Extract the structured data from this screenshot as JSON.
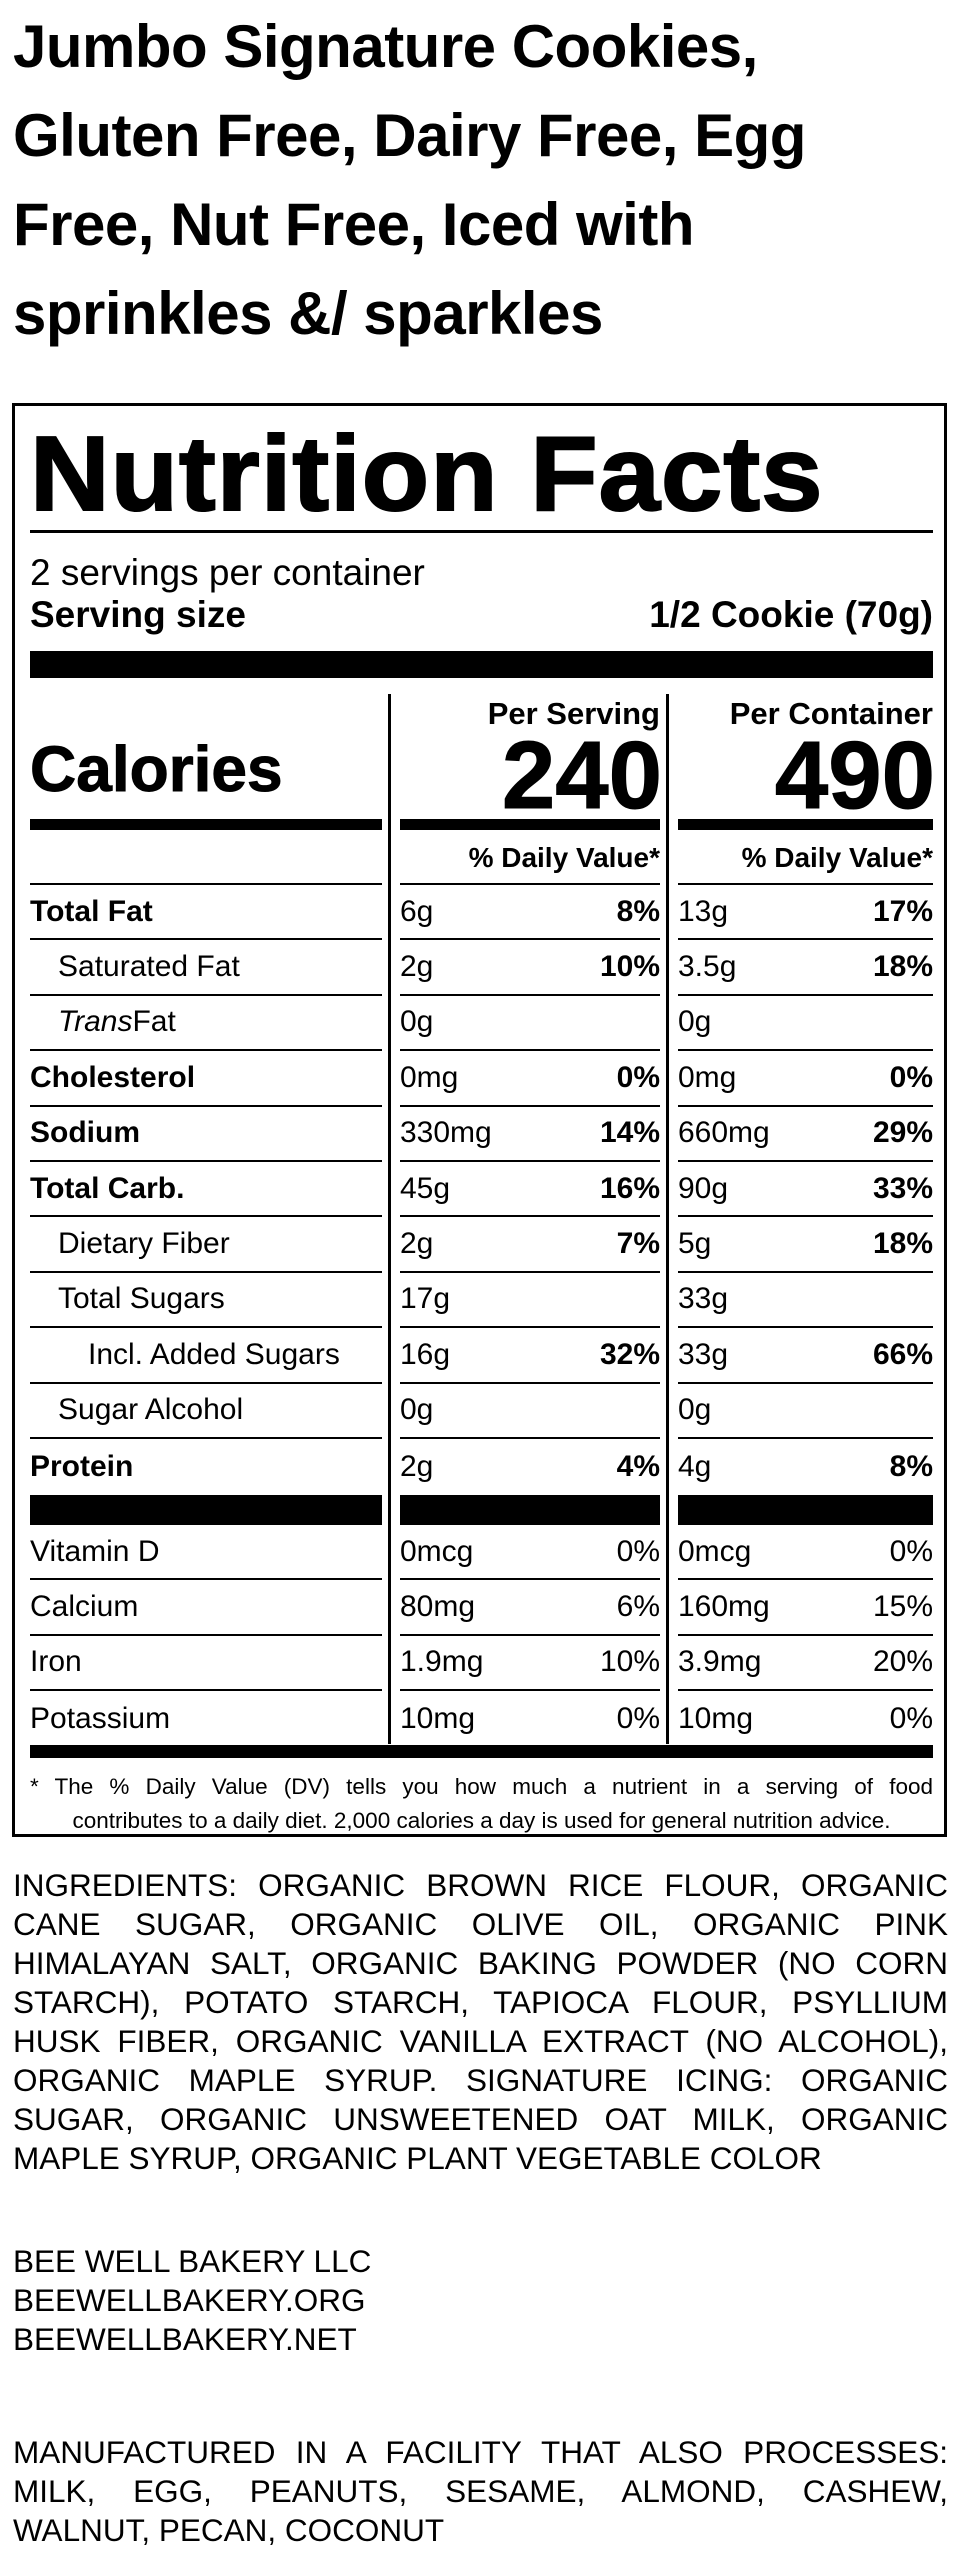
{
  "product_title": "Jumbo Signature Cookies, Gluten Free, Dairy Free, Egg Free, Nut Free, Iced with sprinkles &/ sparkles",
  "label": {
    "heading": "Nutrition Facts",
    "servings_per_container": "2 servings per container",
    "serving_size_label": "Serving size",
    "serving_size_value": "1/2 Cookie (70g)",
    "calories_label": "Calories",
    "columns": [
      {
        "header": "Per Serving",
        "calories": "240",
        "dv_header": "% Daily Value*"
      },
      {
        "header": "Per Container",
        "calories": "490",
        "dv_header": "% Daily Value*"
      }
    ],
    "nutrients": [
      {
        "name": "Total Fat",
        "style": "bold",
        "indent": 0,
        "serving": {
          "amount": "6g",
          "dv": "8%"
        },
        "container": {
          "amount": "13g",
          "dv": "17%"
        }
      },
      {
        "name": "Saturated Fat",
        "style": "normal",
        "indent": 1,
        "serving": {
          "amount": "2g",
          "dv": "10%"
        },
        "container": {
          "amount": "3.5g",
          "dv": "18%"
        }
      },
      {
        "name_italic": "Trans",
        "name": " Fat",
        "style": "normal",
        "indent": 1,
        "serving": {
          "amount": "0g",
          "dv": ""
        },
        "container": {
          "amount": "0g",
          "dv": ""
        }
      },
      {
        "name": "Cholesterol",
        "style": "bold",
        "indent": 0,
        "serving": {
          "amount": "0mg",
          "dv": "0%"
        },
        "container": {
          "amount": "0mg",
          "dv": "0%"
        }
      },
      {
        "name": "Sodium",
        "style": "bold",
        "indent": 0,
        "serving": {
          "amount": "330mg",
          "dv": "14%"
        },
        "container": {
          "amount": "660mg",
          "dv": "29%"
        }
      },
      {
        "name": "Total Carb.",
        "style": "bold",
        "indent": 0,
        "serving": {
          "amount": "45g",
          "dv": "16%"
        },
        "container": {
          "amount": "90g",
          "dv": "33%"
        }
      },
      {
        "name": "Dietary Fiber",
        "style": "normal",
        "indent": 1,
        "serving": {
          "amount": "2g",
          "dv": "7%"
        },
        "container": {
          "amount": "5g",
          "dv": "18%"
        }
      },
      {
        "name": "Total Sugars",
        "style": "normal",
        "indent": 1,
        "serving": {
          "amount": "17g",
          "dv": ""
        },
        "container": {
          "amount": "33g",
          "dv": ""
        }
      },
      {
        "name": "Incl. Added Sugars",
        "style": "normal",
        "indent": 2,
        "serving": {
          "amount": "16g",
          "dv": "32%"
        },
        "container": {
          "amount": "33g",
          "dv": "66%"
        }
      },
      {
        "name": "Sugar Alcohol",
        "style": "normal",
        "indent": 1,
        "serving": {
          "amount": "0g",
          "dv": ""
        },
        "container": {
          "amount": "0g",
          "dv": ""
        }
      },
      {
        "name": "Protein",
        "style": "bold",
        "indent": 0,
        "serving": {
          "amount": "2g",
          "dv": "4%"
        },
        "container": {
          "amount": "4g",
          "dv": "8%"
        }
      }
    ],
    "micronutrients": [
      {
        "name": "Vitamin D",
        "serving": {
          "amount": "0mcg",
          "dv": "0%"
        },
        "container": {
          "amount": "0mcg",
          "dv": "0%"
        }
      },
      {
        "name": "Calcium",
        "serving": {
          "amount": "80mg",
          "dv": "6%"
        },
        "container": {
          "amount": "160mg",
          "dv": "15%"
        }
      },
      {
        "name": "Iron",
        "serving": {
          "amount": "1.9mg",
          "dv": "10%"
        },
        "container": {
          "amount": "3.9mg",
          "dv": "20%"
        }
      },
      {
        "name": "Potassium",
        "serving": {
          "amount": "10mg",
          "dv": "0%"
        },
        "container": {
          "amount": "10mg",
          "dv": "0%"
        }
      }
    ],
    "footnote": [
      "* The % Daily Value (DV) tells you how much a nutrient in a serving of food",
      "contributes to a daily diet. 2,000 calories a day is used for general nutrition advice."
    ]
  },
  "ingredients": [
    "INGREDIENTS: ORGANIC BROWN RICE FLOUR, ORGANIC",
    "CANE SUGAR, ORGANIC OLIVE OIL, ORGANIC PINK",
    "HIMALAYAN SALT, ORGANIC BAKING POWDER (NO CORN",
    "STARCH), POTATO STARCH, TAPIOCA FLOUR, PSYLLIUM",
    "HUSK FIBER, ORGANIC VANILLA EXTRACT (NO ALCOHOL),",
    "ORGANIC MAPLE SYRUP. SIGNATURE ICING: ORGANIC",
    "SUGAR, ORGANIC UNSWEETENED OAT MILK, ORGANIC",
    "MAPLE SYRUP, ORGANIC PLANT VEGETABLE COLOR"
  ],
  "company": [
    "BEE WELL BAKERY LLC",
    "BEEWELLBAKERY.ORG",
    "BEEWELLBAKERY.NET"
  ],
  "allergen_statement": [
    "MANUFACTURED IN A FACILITY THAT ALSO PROCESSES:",
    "MILK, EGG, PEANUTS, SESAME, ALMOND, CASHEW,",
    "WALNUT, PECAN, COCONUT"
  ]
}
